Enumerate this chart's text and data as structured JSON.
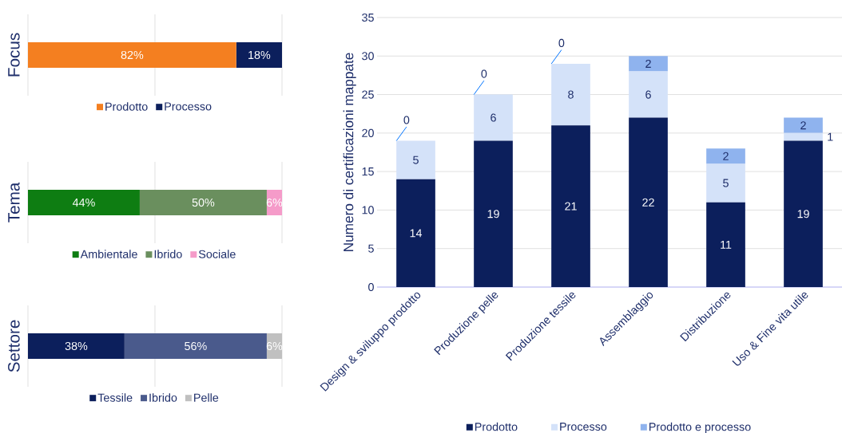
{
  "chart_data": [
    {
      "type": "bar",
      "orientation": "horizontal",
      "stacked": true,
      "ylabel": "Focus",
      "categories": [
        null
      ],
      "series": [
        {
          "name": "Prodotto",
          "color": "#f47f20",
          "values": [
            82
          ],
          "value_labels": [
            "82%"
          ]
        },
        {
          "name": "Processo",
          "color": "#0c1f5c",
          "values": [
            18
          ],
          "value_labels": [
            "18%"
          ]
        }
      ],
      "xlim": [
        0,
        100
      ],
      "xticks": [
        {
          "value": 0,
          "label": null
        },
        {
          "value": 50,
          "label": null
        },
        {
          "value": 100,
          "label": null
        }
      ],
      "grid": "x",
      "legend": "bottom"
    },
    {
      "type": "bar",
      "orientation": "horizontal",
      "stacked": true,
      "ylabel": "Tema",
      "categories": [
        null
      ],
      "series": [
        {
          "name": "Ambientale",
          "color": "#0e7d12",
          "values": [
            44
          ],
          "value_labels": [
            "44%"
          ]
        },
        {
          "name": "Ibrido",
          "color": "#6a8f5e",
          "values": [
            50
          ],
          "value_labels": [
            "50%"
          ]
        },
        {
          "name": "Sociale",
          "color": "#f59bc9",
          "values": [
            6
          ],
          "value_labels": [
            "6%"
          ]
        }
      ],
      "xlim": [
        0,
        100
      ],
      "xticks": [
        {
          "value": 0,
          "label": null
        },
        {
          "value": 50,
          "label": null
        },
        {
          "value": 100,
          "label": null
        }
      ],
      "grid": "x",
      "legend": "bottom"
    },
    {
      "type": "bar",
      "orientation": "horizontal",
      "stacked": true,
      "ylabel": "Settore",
      "categories": [
        null
      ],
      "series": [
        {
          "name": "Tessile",
          "color": "#0c1f5c",
          "values": [
            38
          ],
          "value_labels": [
            "38%"
          ]
        },
        {
          "name": "Ibrido",
          "color": "#4a5a8c",
          "values": [
            56
          ],
          "value_labels": [
            "56%"
          ]
        },
        {
          "name": "Pelle",
          "color": "#c0c0c0",
          "values": [
            6
          ],
          "value_labels": [
            "6%"
          ]
        }
      ],
      "xlim": [
        0,
        100
      ],
      "xticks": [
        {
          "value": 0,
          "label": null
        },
        {
          "value": 50,
          "label": null
        },
        {
          "value": 100,
          "label": null
        }
      ],
      "grid": "x",
      "legend": "bottom"
    },
    {
      "type": "bar",
      "stacked": true,
      "ylabel": "Numero di certificazioni mappate",
      "categories": [
        "Design & sviluppo prodotto",
        "Produzione pelle",
        "Produzione tessile",
        "Assemblaggio",
        "Distribuzione",
        "Uso & Fine vita utile"
      ],
      "series": [
        {
          "name": "Prodotto",
          "color": "#0c1f5c",
          "values": [
            14,
            19,
            21,
            22,
            11,
            19
          ]
        },
        {
          "name": "Processo",
          "color": "#d4e2f9",
          "values": [
            5,
            6,
            8,
            6,
            5,
            1
          ]
        },
        {
          "name": "Prodotto e processo",
          "color": "#8fb3ee",
          "values": [
            0,
            0,
            0,
            2,
            2,
            2
          ]
        }
      ],
      "ylim": [
        0,
        35
      ],
      "yticks": [
        0,
        5,
        10,
        15,
        20,
        25,
        30,
        35
      ],
      "grid": "y",
      "legend": "bottom",
      "data_labels": true
    }
  ]
}
